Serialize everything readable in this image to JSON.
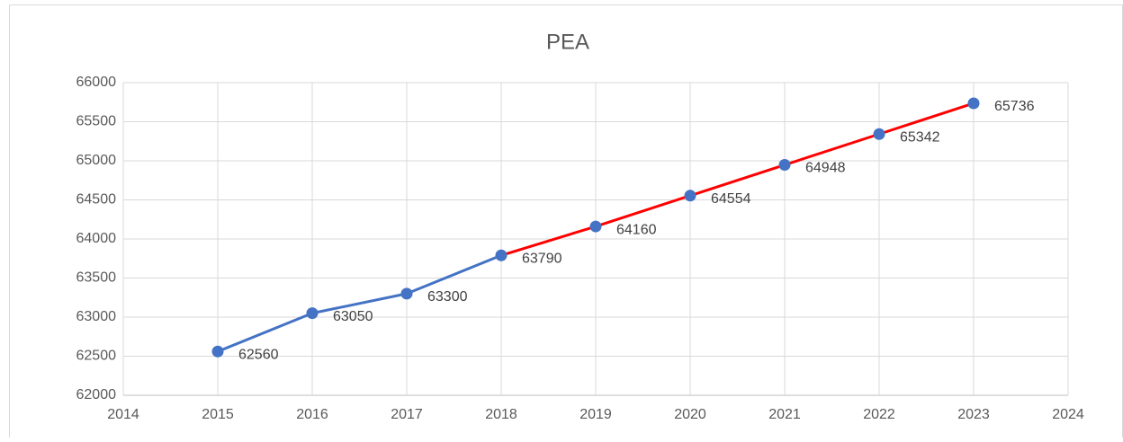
{
  "chart_data": {
    "type": "line",
    "title": "PEA",
    "x": [
      2015,
      2016,
      2017,
      2018,
      2019,
      2020,
      2021,
      2022,
      2023
    ],
    "values": [
      62560,
      63050,
      63300,
      63790,
      64160,
      64554,
      64948,
      65342,
      65736
    ],
    "color": "#4472c4",
    "line_colors": [
      "#4472c4",
      "#4472c4",
      "#4472c4",
      "#ff0000",
      "#ff0000",
      "#ff0000",
      "#ff0000",
      "#ff0000"
    ],
    "xlim": [
      2014,
      2024
    ],
    "xticks": [
      2014,
      2015,
      2016,
      2017,
      2018,
      2019,
      2020,
      2021,
      2022,
      2023,
      2024
    ],
    "ylim": [
      62000,
      66000
    ],
    "yticks": [
      62000,
      62500,
      63000,
      63500,
      64000,
      64500,
      65000,
      65500,
      66000
    ],
    "grid": true
  }
}
